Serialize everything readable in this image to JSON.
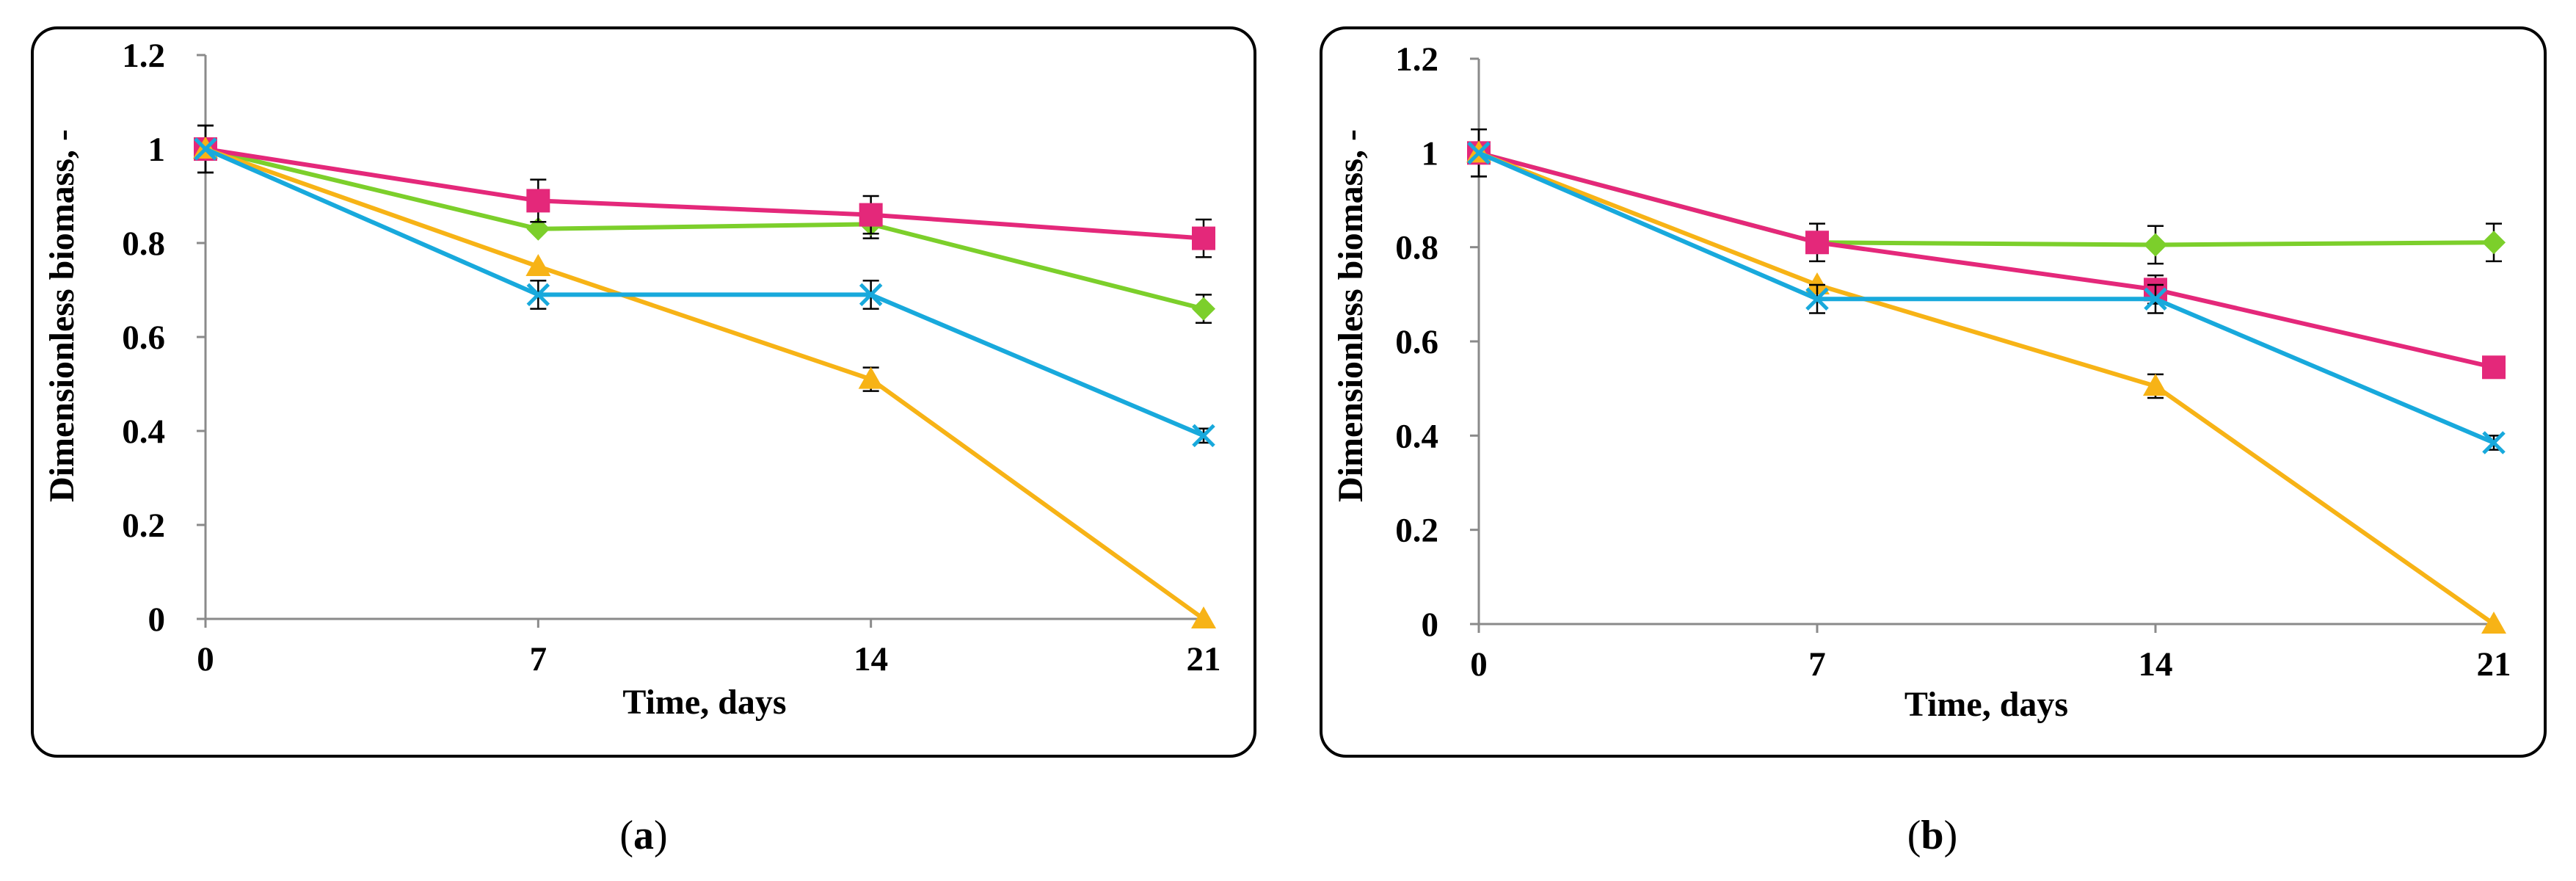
{
  "figure": {
    "panels": [
      {
        "caption": "(a)",
        "caption_letter": "a"
      },
      {
        "caption": "(b)",
        "caption_letter": "b"
      }
    ]
  },
  "chart_data": [
    {
      "type": "line",
      "title": "",
      "xlabel": "Time, days",
      "ylabel": "Dimensionless biomass, -",
      "x": [
        0,
        7,
        14,
        21
      ],
      "xlim": [
        0,
        21
      ],
      "ylim": [
        0,
        1.2
      ],
      "yticks": [
        "0",
        "0.2",
        "0.4",
        "0.6",
        "0.8",
        "1",
        "1.2"
      ],
      "xticks": [
        "0",
        "7",
        "14",
        "21"
      ],
      "grid": false,
      "legend": "none",
      "series": [
        {
          "name": "green-diamond",
          "color": "#7ccf2b",
          "marker": "diamond",
          "values": [
            1.0,
            0.83,
            0.84,
            0.66
          ],
          "errors": [
            0.05,
            0.0,
            0.03,
            0.03
          ]
        },
        {
          "name": "magenta-square",
          "color": "#e4287a",
          "marker": "square",
          "values": [
            1.0,
            0.89,
            0.86,
            0.81
          ],
          "errors": [
            0.05,
            0.045,
            0.04,
            0.04
          ]
        },
        {
          "name": "orange-triangle",
          "color": "#f7b316",
          "marker": "triangle",
          "values": [
            1.0,
            0.75,
            0.51,
            0.0
          ],
          "errors": [
            0.0,
            0.0,
            0.025,
            0.0
          ]
        },
        {
          "name": "blue-cross",
          "color": "#18a9dc",
          "marker": "x",
          "values": [
            1.0,
            0.69,
            0.69,
            0.39
          ],
          "errors": [
            0.0,
            0.03,
            0.03,
            0.015
          ]
        }
      ]
    },
    {
      "type": "line",
      "title": "",
      "xlabel": "Time, days",
      "ylabel": "Dimensionless biomass, -",
      "x": [
        0,
        7,
        14,
        21
      ],
      "xlim": [
        0,
        21
      ],
      "ylim": [
        0,
        1.2
      ],
      "yticks": [
        "0",
        "0.2",
        "0.4",
        "0.6",
        "0.8",
        "1",
        "1.2"
      ],
      "xticks": [
        "0",
        "7",
        "14",
        "21"
      ],
      "grid": false,
      "legend": "none",
      "series": [
        {
          "name": "green-diamond",
          "color": "#7ccf2b",
          "marker": "diamond",
          "values": [
            1.0,
            0.81,
            0.805,
            0.81
          ],
          "errors": [
            0.05,
            0.0,
            0.04,
            0.04
          ]
        },
        {
          "name": "magenta-square",
          "color": "#e4287a",
          "marker": "square",
          "values": [
            1.0,
            0.81,
            0.71,
            0.545
          ],
          "errors": [
            0.05,
            0.04,
            0.03,
            0.02
          ]
        },
        {
          "name": "orange-triangle",
          "color": "#f7b316",
          "marker": "triangle",
          "values": [
            1.0,
            0.72,
            0.505,
            0.0
          ],
          "errors": [
            0.0,
            0.0,
            0.025,
            0.0
          ]
        },
        {
          "name": "blue-cross",
          "color": "#18a9dc",
          "marker": "x",
          "values": [
            1.0,
            0.69,
            0.69,
            0.385
          ],
          "errors": [
            0.0,
            0.03,
            0.03,
            0.015
          ]
        }
      ]
    }
  ]
}
